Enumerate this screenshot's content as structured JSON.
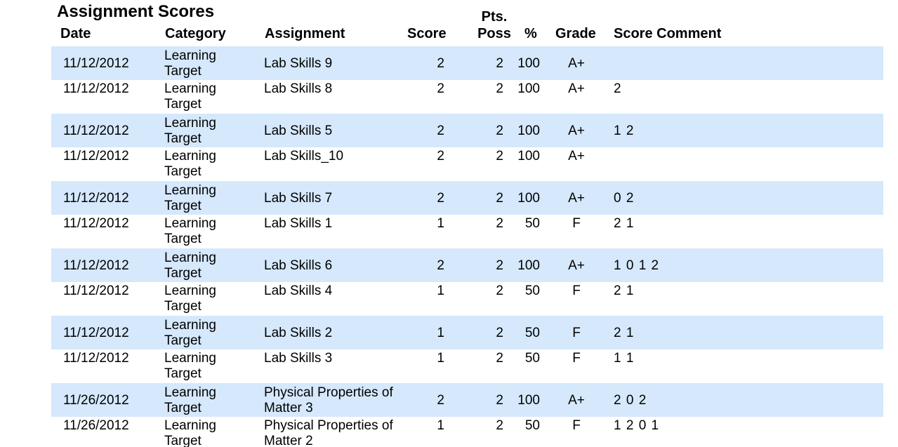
{
  "report": {
    "title": "Assignment Scores",
    "headers": {
      "date": "Date",
      "category": "Category",
      "assignment": "Assignment",
      "score": "Score",
      "pts_poss_line1": "Pts.",
      "pts_poss_line2": "Poss",
      "percent": "%",
      "grade": "Grade",
      "comment": "Score Comment"
    },
    "rows": [
      {
        "date": "11/12/2012",
        "category": "Learning Target",
        "assignment": "Lab Skills 9",
        "score": "2",
        "poss": "2",
        "percent": "100",
        "grade": "A+",
        "comment": ""
      },
      {
        "date": "11/12/2012",
        "category": "Learning Target",
        "assignment": "Lab Skills 8",
        "score": "2",
        "poss": "2",
        "percent": "100",
        "grade": "A+",
        "comment": "2"
      },
      {
        "date": "11/12/2012",
        "category": "Learning Target",
        "assignment": "Lab Skills 5",
        "score": "2",
        "poss": "2",
        "percent": "100",
        "grade": "A+",
        "comment": "1  2"
      },
      {
        "date": "11/12/2012",
        "category": "Learning Target",
        "assignment": "Lab Skills_10",
        "score": "2",
        "poss": "2",
        "percent": "100",
        "grade": "A+",
        "comment": ""
      },
      {
        "date": "11/12/2012",
        "category": "Learning Target",
        "assignment": "Lab Skills 7",
        "score": "2",
        "poss": "2",
        "percent": "100",
        "grade": "A+",
        "comment": "0  2"
      },
      {
        "date": "11/12/2012",
        "category": "Learning Target",
        "assignment": "Lab Skills 1",
        "score": "1",
        "poss": "2",
        "percent": "50",
        "grade": "F",
        "comment": "2  1"
      },
      {
        "date": "11/12/2012",
        "category": "Learning Target",
        "assignment": "Lab Skills 6",
        "score": "2",
        "poss": "2",
        "percent": "100",
        "grade": "A+",
        "comment": "1  0  1  2"
      },
      {
        "date": "11/12/2012",
        "category": "Learning Target",
        "assignment": "Lab Skills 4",
        "score": "1",
        "poss": "2",
        "percent": "50",
        "grade": "F",
        "comment": "2 1"
      },
      {
        "date": "11/12/2012",
        "category": "Learning Target",
        "assignment": "Lab Skills 2",
        "score": "1",
        "poss": "2",
        "percent": "50",
        "grade": "F",
        "comment": "2  1"
      },
      {
        "date": "11/12/2012",
        "category": "Learning Target",
        "assignment": "Lab Skills 3",
        "score": "1",
        "poss": "2",
        "percent": "50",
        "grade": "F",
        "comment": "1  1"
      },
      {
        "date": "11/26/2012",
        "category": "Learning Target",
        "assignment": "Physical Properties of Matter 3",
        "score": "2",
        "poss": "2",
        "percent": "100",
        "grade": "A+",
        "comment": "2  0  2"
      },
      {
        "date": "11/26/2012",
        "category": "Learning Target",
        "assignment": "Physical Properties of Matter 2",
        "score": "1",
        "poss": "2",
        "percent": "50",
        "grade": "F",
        "comment": "1  2  0  1"
      }
    ]
  },
  "colors": {
    "band": "#d5e8fc",
    "text": "#000000",
    "background": "#ffffff"
  }
}
